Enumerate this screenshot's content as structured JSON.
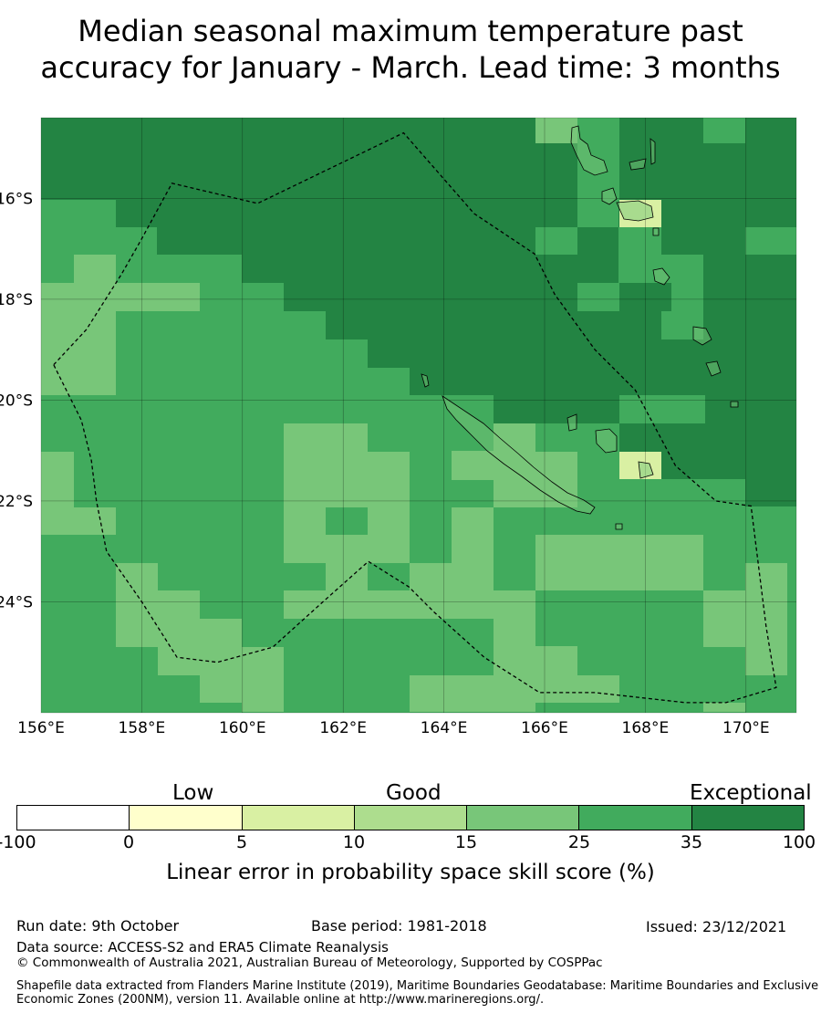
{
  "title": "Median seasonal maximum temperature past\naccuracy for January - March. Lead time: 3 months",
  "map": {
    "lon_range": [
      156,
      171
    ],
    "lat_range": [
      -26.2,
      -14.4
    ],
    "lon_ticks": [
      "156°E",
      "158°E",
      "160°E",
      "162°E",
      "164°E",
      "166°E",
      "168°E",
      "170°E"
    ],
    "lat_ticks": [
      "16°S",
      "18°S",
      "20°S",
      "22°S",
      "24°S"
    ],
    "lon_tick_values": [
      156,
      158,
      160,
      162,
      164,
      166,
      168,
      170
    ],
    "lat_tick_values": [
      -16,
      -18,
      -20,
      -22,
      -24
    ],
    "grid": true,
    "colors": [
      "#ffffff",
      "#ffffcc",
      "#d9f0a3",
      "#addd8e",
      "#78c679",
      "#41ab5d",
      "#238443"
    ],
    "boundary": [
      [
        156.25,
        -19.3
      ],
      [
        156.9,
        -18.6
      ],
      [
        157.6,
        -17.5
      ],
      [
        158.0,
        -16.8
      ],
      [
        158.6,
        -15.7
      ],
      [
        160.3,
        -16.1
      ],
      [
        163.2,
        -14.7
      ],
      [
        164.6,
        -16.3
      ],
      [
        165.8,
        -17.1
      ],
      [
        166.2,
        -17.9
      ],
      [
        167.0,
        -19.0
      ],
      [
        167.8,
        -19.8
      ],
      [
        168.6,
        -21.3
      ],
      [
        169.4,
        -22.0
      ],
      [
        170.1,
        -22.1
      ],
      [
        170.4,
        -24.5
      ],
      [
        170.6,
        -25.7
      ],
      [
        169.6,
        -26.0
      ],
      [
        168.8,
        -26.0
      ],
      [
        167.0,
        -25.8
      ],
      [
        165.9,
        -25.8
      ],
      [
        164.8,
        -25.1
      ],
      [
        163.8,
        -24.2
      ],
      [
        163.3,
        -23.7
      ],
      [
        162.5,
        -23.2
      ],
      [
        161.6,
        -24.0
      ],
      [
        160.6,
        -24.9
      ],
      [
        159.5,
        -25.2
      ],
      [
        158.7,
        -25.1
      ],
      [
        158.0,
        -24.0
      ],
      [
        157.3,
        -23.0
      ],
      [
        157.1,
        -22.0
      ],
      [
        157.0,
        -21.2
      ],
      [
        156.8,
        -20.4
      ],
      [
        156.25,
        -19.3
      ]
    ]
  },
  "legend": {
    "labels": [
      "Low",
      "Good",
      "Exceptional"
    ],
    "ticks": [
      "-100",
      "0",
      "5",
      "10",
      "15",
      "25",
      "35",
      "100"
    ],
    "title": "Linear error in probability space skill score (%)"
  },
  "footer": {
    "run_date": "Run date: 9th October",
    "base_period": "Base period: 1981-2018",
    "issued": "Issued: 23/12/2021",
    "data_source": "Data source: ACCESS-S2 and ERA5 Climate Reanalysis",
    "copyright": "© Commonwealth of Australia 2021, Australian Bureau of Meteorology, Supported by COSPPac",
    "shapefile": "Shapefile data extracted from Flanders Marine Institute (2019), Maritime Boundaries Geodatabase: Maritime Boundaries and Exclusive Economic Zones (200NM), version 11. Available online at http://www.marineregions.org/."
  }
}
